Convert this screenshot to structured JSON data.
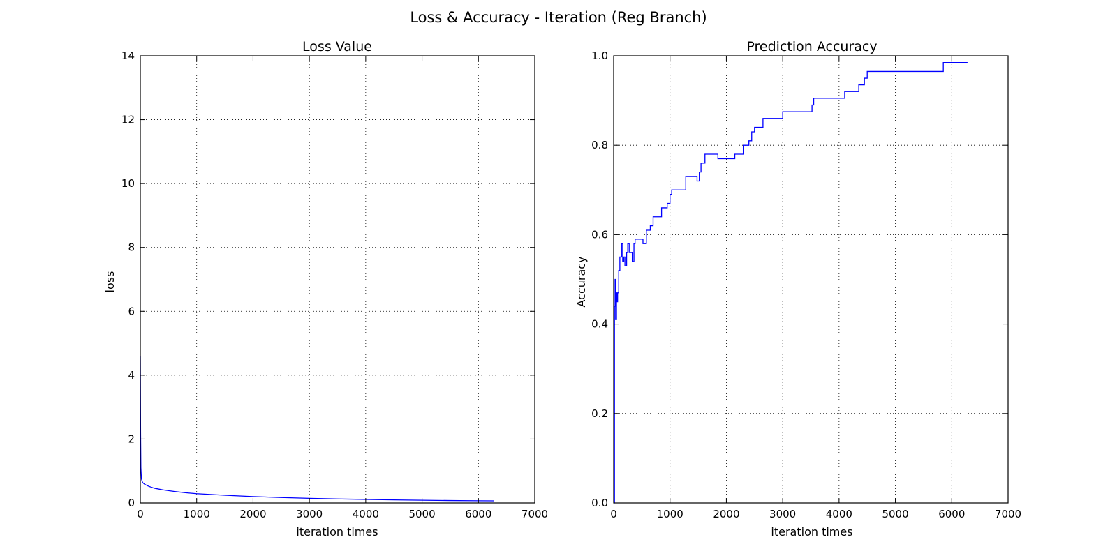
{
  "figure": {
    "suptitle": "Loss & Accuracy - Iteration (Reg Branch)"
  },
  "chart_data": [
    {
      "type": "line",
      "title": "Loss Value",
      "xlabel": "iteration times",
      "ylabel": "loss",
      "xlim": [
        0,
        7000
      ],
      "ylim": [
        0,
        14
      ],
      "xticks": [
        0,
        1000,
        2000,
        3000,
        4000,
        5000,
        6000,
        7000
      ],
      "yticks": [
        0,
        2,
        4,
        6,
        8,
        10,
        12,
        14
      ],
      "xtick_labels": [
        "0",
        "1000",
        "2000",
        "3000",
        "4000",
        "5000",
        "6000",
        "7000"
      ],
      "ytick_labels": [
        "0",
        "2",
        "4",
        "6",
        "8",
        "10",
        "12",
        "14"
      ],
      "grid": true,
      "series": [
        {
          "color": "#0000ff",
          "x": [
            0,
            5,
            10,
            20,
            40,
            80,
            150,
            250,
            400,
            600,
            800,
            1000,
            1500,
            2000,
            2500,
            3000,
            3500,
            4000,
            4500,
            5000,
            5500,
            6000,
            6280
          ],
          "y": [
            4.6,
            2.2,
            1.1,
            0.75,
            0.64,
            0.58,
            0.52,
            0.46,
            0.41,
            0.36,
            0.32,
            0.29,
            0.24,
            0.2,
            0.17,
            0.145,
            0.125,
            0.11,
            0.095,
            0.085,
            0.075,
            0.068,
            0.065
          ]
        }
      ]
    },
    {
      "type": "line",
      "title": "Prediction Accuracy",
      "xlabel": "iteration times",
      "ylabel": "Accuracy",
      "xlim": [
        0,
        7000
      ],
      "ylim": [
        0,
        1
      ],
      "xticks": [
        0,
        1000,
        2000,
        3000,
        4000,
        5000,
        6000,
        7000
      ],
      "yticks": [
        0,
        0.2,
        0.4,
        0.6,
        0.8,
        1.0
      ],
      "xtick_labels": [
        "0",
        "1000",
        "2000",
        "3000",
        "4000",
        "5000",
        "6000",
        "7000"
      ],
      "ytick_labels": [
        "0.0",
        "0.2",
        "0.4",
        "0.6",
        "0.8",
        "1.0"
      ],
      "grid": true,
      "series": [
        {
          "color": "#0000ff",
          "x": [
            0,
            15,
            25,
            35,
            50,
            60,
            70,
            90,
            110,
            140,
            160,
            180,
            200,
            230,
            250,
            275,
            300,
            330,
            360,
            380,
            400,
            450,
            520,
            580,
            650,
            700,
            780,
            850,
            900,
            950,
            1000,
            1030,
            1100,
            1200,
            1280,
            1300,
            1450,
            1480,
            1520,
            1550,
            1620,
            1700,
            1850,
            2000,
            2100,
            2150,
            2250,
            2300,
            2400,
            2450,
            2500,
            2550,
            2650,
            2800,
            2900,
            3000,
            3200,
            3350,
            3500,
            3520,
            3550,
            4000,
            4100,
            4300,
            4350,
            4400,
            4450,
            4500,
            4700,
            4900,
            5200,
            5500,
            5800,
            5850,
            6000,
            6280
          ],
          "y": [
            0.0,
            0.44,
            0.5,
            0.41,
            0.47,
            0.45,
            0.47,
            0.52,
            0.55,
            0.58,
            0.54,
            0.55,
            0.53,
            0.56,
            0.58,
            0.56,
            0.56,
            0.54,
            0.58,
            0.59,
            0.59,
            0.59,
            0.58,
            0.61,
            0.62,
            0.64,
            0.64,
            0.66,
            0.66,
            0.67,
            0.69,
            0.7,
            0.7,
            0.7,
            0.73,
            0.73,
            0.73,
            0.72,
            0.74,
            0.76,
            0.78,
            0.78,
            0.77,
            0.77,
            0.77,
            0.78,
            0.78,
            0.8,
            0.81,
            0.83,
            0.84,
            0.84,
            0.86,
            0.86,
            0.86,
            0.875,
            0.875,
            0.875,
            0.875,
            0.89,
            0.905,
            0.905,
            0.92,
            0.92,
            0.935,
            0.935,
            0.95,
            0.965,
            0.965,
            0.965,
            0.965,
            0.965,
            0.965,
            0.985,
            0.985,
            0.985
          ]
        }
      ]
    }
  ]
}
